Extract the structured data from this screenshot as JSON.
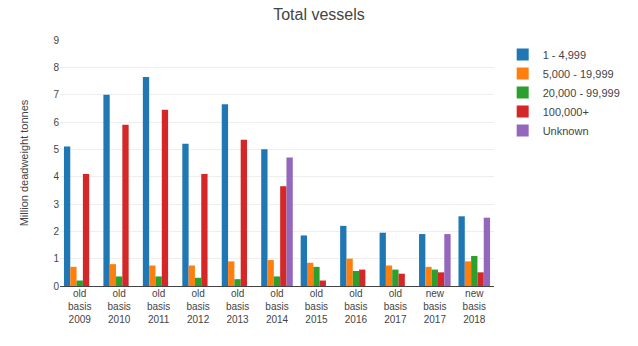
{
  "chart_data": {
    "type": "bar",
    "title": "Total vessels",
    "ylabel": "Million deadweight tonnes",
    "categories": [
      "old\nbasis\n2009",
      "old\nbasis\n2010",
      "old\nbasis\n2011",
      "old\nbasis\n2012",
      "old\nbasis\n2013",
      "old\nbasis\n2014",
      "old\nbasis\n2015",
      "old\nbasis\n2016",
      "old\nbasis\n2017",
      "new\nbasis\n2017",
      "new\nbasis\n2018"
    ],
    "series": [
      {
        "name": "1 - 4,999",
        "values": [
          5.1,
          7.0,
          7.65,
          5.2,
          6.65,
          5.0,
          1.85,
          2.2,
          1.95,
          1.9,
          2.55
        ]
      },
      {
        "name": "5,000 - 19,999",
        "values": [
          0.7,
          0.8,
          0.75,
          0.75,
          0.9,
          0.95,
          0.85,
          1.0,
          0.75,
          0.7,
          0.9
        ]
      },
      {
        "name": "20,000 - 99,999",
        "values": [
          0.2,
          0.35,
          0.35,
          0.3,
          0.25,
          0.35,
          0.7,
          0.55,
          0.6,
          0.6,
          1.1
        ]
      },
      {
        "name": "100,000+",
        "values": [
          4.1,
          5.9,
          6.45,
          4.1,
          5.35,
          3.65,
          0.2,
          0.6,
          0.45,
          0.5,
          0.5
        ]
      },
      {
        "name": "Unknown",
        "values": [
          0.0,
          0.0,
          0.0,
          0.0,
          0.0,
          4.7,
          0.0,
          0.0,
          0.0,
          1.9,
          2.5
        ]
      }
    ],
    "ylim": [
      0,
      9
    ],
    "yticks": [
      0,
      1,
      2,
      3,
      4,
      5,
      6,
      7,
      8,
      9
    ],
    "grid": true,
    "legend": "right"
  }
}
